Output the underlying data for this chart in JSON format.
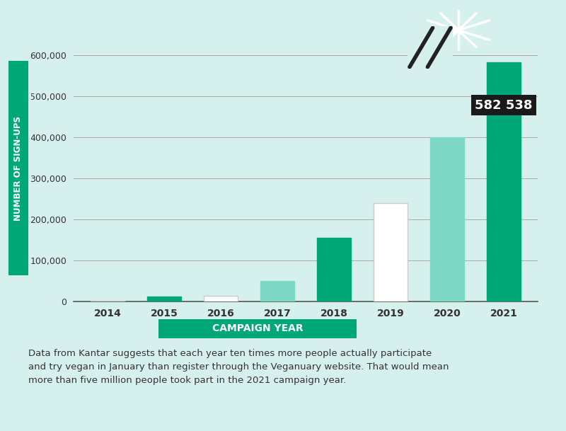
{
  "years": [
    "2014",
    "2015",
    "2016",
    "2017",
    "2018",
    "2019",
    "2020",
    "2021"
  ],
  "values": [
    3000,
    12000,
    14000,
    50000,
    155000,
    240000,
    400000,
    582538
  ],
  "bar_colors": [
    "#ffffff",
    "#00a878",
    "#ffffff",
    "#7dd9c5",
    "#00a878",
    "#ffffff",
    "#7dd9c5",
    "#00a878"
  ],
  "bar_edgecolors": [
    "#cccccc",
    "#00a878",
    "#cccccc",
    "#7dd9c5",
    "#00a878",
    "#cccccc",
    "#7dd9c5",
    "#00a878"
  ],
  "background_color": "#d6f0ee",
  "ylabel": "NUMBER OF SIGN-UPS",
  "xlabel": "CAMPAIGN YEAR",
  "xlabel_bg_color": "#00a878",
  "xlabel_text_color": "#ffffff",
  "ylabel_bg_color": "#00a878",
  "ylabel_text_color": "#ffffff",
  "annotation_value": "582 538",
  "annotation_bg": "#1a1a1a",
  "annotation_text_color": "#ffffff",
  "grid_color": "#aaaaaa",
  "tick_color": "#333333",
  "ylim": [
    0,
    650000
  ],
  "yticks": [
    0,
    100000,
    200000,
    300000,
    400000,
    500000,
    600000
  ],
  "ytick_labels": [
    "0",
    "100,000",
    "200,000",
    "300,000",
    "400,000",
    "500,000",
    "600,000"
  ],
  "footnote": "Data from Kantar suggests that each year ten times more people actually participate\nand try vegan in January than register through the Veganuary website. That would mean\nmore than five million people took part in the 2021 campaign year.",
  "footnote_color": "#333333",
  "bar_width": 0.6
}
